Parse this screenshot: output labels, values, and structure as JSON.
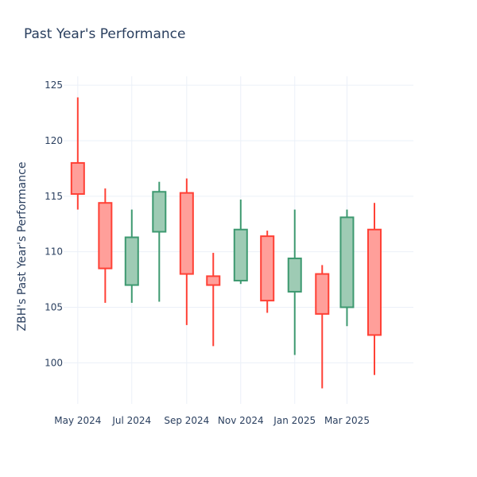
{
  "chart_data": {
    "type": "candlestick",
    "title": "Past Year's Performance",
    "ylabel": "ZBH's Past Year's Performance",
    "xlabel": "",
    "ylim": [
      96.3,
      125.8
    ],
    "xlim": [
      "2024-04-15",
      "2025-05-15"
    ],
    "y_ticks": [
      100,
      105,
      110,
      115,
      120,
      125
    ],
    "x_ticks": [
      {
        "date": "2024-05-01",
        "label": "May 2024"
      },
      {
        "date": "2024-07-01",
        "label": "Jul 2024"
      },
      {
        "date": "2024-09-01",
        "label": "Sep 2024"
      },
      {
        "date": "2024-11-01",
        "label": "Nov 2024"
      },
      {
        "date": "2025-01-01",
        "label": "Jan 2025"
      },
      {
        "date": "2025-03-01",
        "label": "Mar 2025"
      }
    ],
    "grid": true,
    "colors": {
      "increasing_line": "#3d9970",
      "increasing_fill": "#9ecbb4",
      "decreasing_line": "#ff4136",
      "decreasing_fill": "#ff9f9a"
    },
    "candles": [
      {
        "date": "2024-05-01",
        "open": 118.0,
        "high": 123.9,
        "low": 113.8,
        "close": 115.2
      },
      {
        "date": "2024-06-01",
        "open": 114.4,
        "high": 115.7,
        "low": 105.4,
        "close": 108.5
      },
      {
        "date": "2024-07-01",
        "open": 107.0,
        "high": 113.8,
        "low": 105.4,
        "close": 111.3
      },
      {
        "date": "2024-08-01",
        "open": 111.8,
        "high": 116.3,
        "low": 105.5,
        "close": 115.4
      },
      {
        "date": "2024-09-01",
        "open": 115.3,
        "high": 116.6,
        "low": 103.4,
        "close": 108.0
      },
      {
        "date": "2024-10-01",
        "open": 107.8,
        "high": 109.9,
        "low": 101.5,
        "close": 107.0
      },
      {
        "date": "2024-11-01",
        "open": 107.4,
        "high": 114.7,
        "low": 107.1,
        "close": 112.0
      },
      {
        "date": "2024-12-01",
        "open": 111.4,
        "high": 111.9,
        "low": 104.5,
        "close": 105.6
      },
      {
        "date": "2025-01-01",
        "open": 106.4,
        "high": 113.8,
        "low": 100.7,
        "close": 109.4
      },
      {
        "date": "2025-02-01",
        "open": 108.0,
        "high": 108.8,
        "low": 97.7,
        "close": 104.4
      },
      {
        "date": "2025-03-01",
        "open": 105.0,
        "high": 113.8,
        "low": 103.3,
        "close": 113.1
      },
      {
        "date": "2025-04-01",
        "open": 112.0,
        "high": 114.4,
        "low": 98.9,
        "close": 102.5
      }
    ]
  }
}
